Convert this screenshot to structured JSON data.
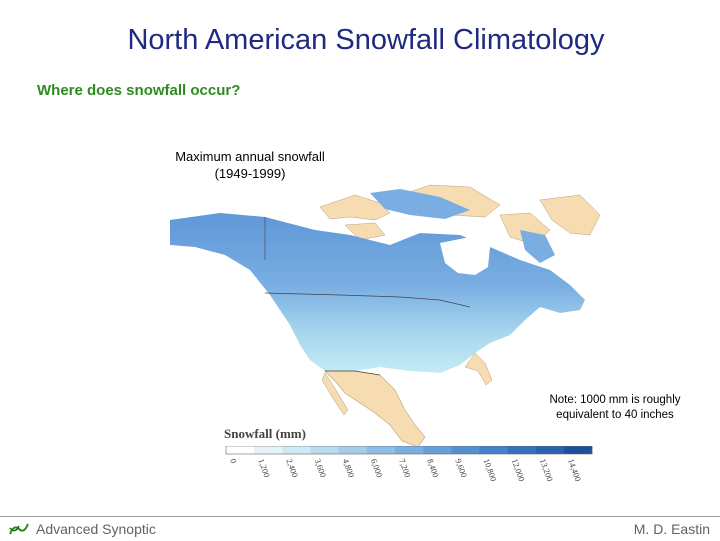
{
  "slide": {
    "title": "North American Snowfall Climatology",
    "subtitle": "Where does snowfall occur?"
  },
  "map": {
    "caption_line1": "Maximum annual snowfall",
    "caption_line2": "(1949-1999)",
    "note_line1": "Note: 1000 mm is roughly",
    "note_line2": "equivalent to 40 inches",
    "legend": {
      "title": "Snowfall (mm)",
      "ticks": [
        "0",
        "1,200",
        "2,400",
        "3,600",
        "4,800",
        "6,000",
        "7,200",
        "8,400",
        "9,600",
        "10,800",
        "12,000",
        "13,200",
        "14,400"
      ],
      "colors": [
        "#ffffff",
        "#e6f4fa",
        "#cfeaf4",
        "#b7dcee",
        "#a4cdea",
        "#8fbfe6",
        "#7ab0e0",
        "#669fd9",
        "#548fd1",
        "#4580c8",
        "#3672bc",
        "#2a62ad",
        "#1f4f98"
      ]
    },
    "colors": {
      "land_non_snow": "#f6dcb0",
      "snow_high": "#6aa0dc",
      "snow_low": "#b7e3f0"
    }
  },
  "footer": {
    "left_text": "Advanced Synoptic",
    "right_text": "M. D. Eastin"
  }
}
